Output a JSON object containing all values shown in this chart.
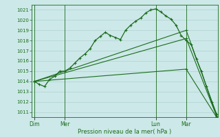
{
  "xlabel": "Pression niveau de la mer( hPa )",
  "bg_color": "#cce8e8",
  "grid_color": "#aacccc",
  "line_color": "#1a6b1a",
  "ylim": [
    1010.5,
    1021.5
  ],
  "yticks": [
    1011,
    1012,
    1013,
    1014,
    1015,
    1016,
    1017,
    1018,
    1019,
    1020,
    1021
  ],
  "day_labels": [
    "Dim",
    "Mer",
    "Lun",
    "Mar"
  ],
  "day_positions": [
    0,
    24,
    96,
    120
  ],
  "xlim": [
    -2,
    145
  ],
  "series1_x": [
    0,
    4,
    8,
    12,
    16,
    20,
    24,
    28,
    32,
    36,
    40,
    44,
    48,
    52,
    56,
    60,
    64,
    68,
    72,
    76,
    80,
    84,
    88,
    92,
    96,
    100,
    104,
    108,
    112,
    116,
    120,
    124,
    128,
    132,
    136,
    140,
    144
  ],
  "series1_y": [
    1014.0,
    1013.7,
    1013.5,
    1014.2,
    1014.5,
    1015.0,
    1015.0,
    1015.3,
    1015.8,
    1016.3,
    1016.7,
    1017.2,
    1018.0,
    1018.4,
    1018.8,
    1018.5,
    1018.3,
    1018.1,
    1019.0,
    1019.5,
    1019.9,
    1020.2,
    1020.7,
    1021.0,
    1021.1,
    1020.8,
    1020.4,
    1020.1,
    1019.5,
    1018.5,
    1018.0,
    1017.6,
    1016.2,
    1015.0,
    1013.5,
    1012.0,
    1010.8
  ],
  "series2_x": [
    0,
    120,
    144
  ],
  "series2_y": [
    1014.0,
    1019.0,
    1010.8
  ],
  "series3_x": [
    0,
    120,
    144
  ],
  "series3_y": [
    1014.0,
    1018.2,
    1010.6
  ],
  "series4_x": [
    0,
    120,
    144
  ],
  "series4_y": [
    1014.0,
    1015.2,
    1010.5
  ],
  "vline_positions": [
    0,
    24,
    96,
    120
  ]
}
